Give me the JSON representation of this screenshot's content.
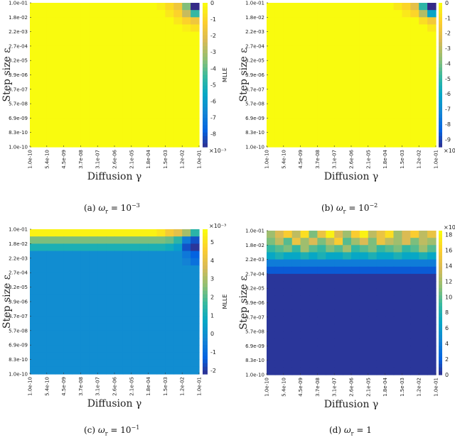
{
  "chart_data": [
    {
      "type": "heatmap",
      "caption": {
        "label": "(a)",
        "sym": "ω",
        "sub": "r",
        "eq": "= 10",
        "sup": "−3"
      },
      "xlabel": "Diffusion γ",
      "ylabel": "Step size ε",
      "x_ticks": [
        "1.0e-10",
        "5.4e-10",
        "4.5e-09",
        "3.7e-08",
        "3.1e-07",
        "2.6e-06",
        "2.1e-05",
        "1.8e-04",
        "1.5e-03",
        "1.2e-02",
        "1.0e-01"
      ],
      "y_ticks": [
        "1.0e-01",
        "1.8e-02",
        "2.2e-03",
        "2.7e-04",
        "3.2e-05",
        "3.9e-06",
        "4.7e-07",
        "5.7e-08",
        "6.9e-09",
        "8.3e-10",
        "1.0e-10"
      ],
      "colorbar": {
        "label": "MLLE",
        "scale": "×10⁻³",
        "scale_pos": "bottom",
        "range": [
          -8.8,
          0
        ],
        "ticks": [
          "0",
          "-1",
          "-2",
          "-3",
          "-4",
          "-5",
          "-6",
          "-7",
          "-8"
        ]
      },
      "top_rows": [
        [
          0,
          0,
          0,
          0,
          0,
          0,
          0,
          0,
          0,
          0,
          0,
          0,
          0,
          0,
          0,
          -0.3,
          -0.8,
          -1.5,
          -3.5,
          -8.8
        ],
        [
          0,
          0,
          0,
          0,
          0,
          0,
          0,
          0,
          0,
          0,
          0,
          0,
          0,
          0,
          0,
          0,
          -0.5,
          -1,
          -2.5,
          -4.5
        ],
        [
          0,
          0,
          0,
          0,
          0,
          0,
          0,
          0,
          0,
          0,
          0,
          0,
          0,
          0,
          0,
          0,
          0,
          -0.5,
          -1,
          -1.5
        ],
        [
          0,
          0,
          0,
          0,
          0,
          0,
          0,
          0,
          0,
          0,
          0,
          0,
          0,
          0,
          0,
          0,
          0,
          0,
          -0.3,
          -0.6
        ]
      ],
      "background": 0
    },
    {
      "type": "heatmap",
      "caption": {
        "label": "(b)",
        "sym": "ω",
        "sub": "r",
        "eq": "= 10",
        "sup": "−2"
      },
      "xlabel": "Diffusion γ",
      "ylabel": "Step size ε",
      "x_ticks": [
        "1.0e-10",
        "5.4e-10",
        "4.5e-09",
        "3.7e-08",
        "3.1e-07",
        "2.6e-06",
        "2.1e-05",
        "1.8e-04",
        "1.5e-03",
        "1.2e-02",
        "1.0e-01"
      ],
      "y_ticks": [
        "1.0e-01",
        "1.8e-02",
        "2.2e-03",
        "2.7e-04",
        "3.2e-05",
        "3.9e-06",
        "4.7e-07",
        "5.7e-08",
        "6.9e-09",
        "8.3e-10",
        "1.0e-10"
      ],
      "colorbar": {
        "label": "MLLE",
        "scale": "×10⁻³",
        "scale_pos": "bottom",
        "range": [
          -9.5,
          0
        ],
        "ticks": [
          "0",
          "-1",
          "-2",
          "-3",
          "-4",
          "-5",
          "-6",
          "-7",
          "-8",
          "-9"
        ]
      },
      "top_rows": [
        [
          0,
          0,
          0,
          0,
          0,
          0,
          0,
          0,
          0,
          0,
          0,
          0,
          0,
          0,
          0,
          -0.5,
          -1,
          -2,
          -5,
          -9.5
        ],
        [
          0,
          0,
          0,
          0,
          0,
          0,
          0,
          0,
          0,
          0,
          0,
          0,
          0,
          0,
          0,
          0,
          -0.5,
          -1,
          -3,
          -6
        ],
        [
          0,
          0,
          0,
          0,
          0,
          0,
          0,
          0,
          0,
          0,
          0,
          0,
          0,
          0,
          0,
          0,
          0,
          0,
          -0.8,
          -1.5
        ],
        [
          0,
          0,
          0,
          0,
          0,
          0,
          0,
          0,
          0,
          0,
          0,
          0,
          0,
          0,
          0,
          0,
          0,
          0,
          0,
          -0.5
        ]
      ],
      "background": 0
    },
    {
      "type": "heatmap",
      "caption": {
        "label": "(c)",
        "sym": "ω",
        "sub": "r",
        "eq": "= 10",
        "sup": "−1"
      },
      "xlabel": "Diffusion γ",
      "ylabel": "Step size ε",
      "x_ticks": [
        "1.0e-10",
        "5.4e-10",
        "4.5e-09",
        "3.7e-08",
        "3.1e-07",
        "2.6e-06",
        "2.1e-05",
        "1.8e-04",
        "1.5e-03",
        "1.2e-02",
        "1.0e-01"
      ],
      "y_ticks": [
        "1.0e-01",
        "1.8e-02",
        "2.2e-03",
        "2.7e-04",
        "3.2e-05",
        "3.9e-06",
        "4.7e-07",
        "5.7e-08",
        "6.9e-09",
        "8.3e-10",
        "1.0e-10"
      ],
      "colorbar": {
        "label": "MLLE",
        "scale": "×10⁻³",
        "scale_pos": "top",
        "range": [
          -2.2,
          5.7
        ],
        "ticks": [
          "5",
          "4",
          "3",
          "2",
          "1",
          "0",
          "-1",
          "-2"
        ]
      },
      "top_rows": [
        [
          5.5,
          5.5,
          5.5,
          5.5,
          5.5,
          5.5,
          5.5,
          5.5,
          5.5,
          5.5,
          5.5,
          5.5,
          5.5,
          5.5,
          5.5,
          5.2,
          4.5,
          4,
          3,
          1.5
        ],
        [
          2.5,
          2.5,
          2.5,
          2.5,
          2.5,
          2.5,
          2.5,
          2.5,
          2.5,
          2.5,
          2.5,
          2.5,
          2.5,
          2.5,
          2.5,
          2.5,
          2.3,
          1.5,
          -0.5,
          -1.5
        ],
        [
          1.2,
          1.2,
          1.2,
          1.2,
          1.2,
          1.2,
          1.2,
          1.2,
          1.2,
          1.2,
          1.2,
          1.2,
          1.2,
          1.2,
          1.2,
          1.2,
          1.0,
          0.5,
          -1.5,
          -2
        ],
        [
          0,
          0,
          0,
          0,
          0,
          0,
          0,
          0,
          0,
          0,
          0,
          0,
          0,
          0,
          0,
          0,
          0,
          0,
          -0.6,
          -1.2
        ],
        [
          0,
          0,
          0,
          0,
          0,
          0,
          0,
          0,
          0,
          0,
          0,
          0,
          0,
          0,
          0,
          0,
          0,
          0,
          -0.3,
          -0.8
        ]
      ],
      "background": 0
    },
    {
      "type": "heatmap",
      "caption": {
        "label": "(d)",
        "sym": "ω",
        "sub": "r",
        "eq": "= 1",
        "sup": ""
      },
      "xlabel": "Diffusion γ",
      "ylabel": "Step size ε",
      "x_ticks": [
        "1.0e-10",
        "5.4e-10",
        "4.5e-09",
        "3.7e-08",
        "3.1e-07",
        "2.6e-06",
        "2.1e-05",
        "1.8e-04",
        "1.5e-03",
        "1.2e-02",
        "1.0e-01"
      ],
      "y_ticks": [
        "1.0e-01",
        "1.8e-02",
        "2.2e-03",
        "2.7e-04",
        "3.2e-05",
        "3.9e-06",
        "4.7e-07",
        "5.7e-08",
        "6.9e-09",
        "8.3e-10",
        "1.0e-10"
      ],
      "colorbar": {
        "label": "MLLE",
        "scale": "×10⁻³",
        "scale_pos": "top",
        "range": [
          0,
          18.5
        ],
        "ticks": [
          "18",
          "16",
          "14",
          "12",
          "10",
          "8",
          "6",
          "4",
          "2",
          "0"
        ]
      },
      "top_rows": [
        [
          12,
          14,
          16,
          13,
          17,
          11,
          15,
          18,
          14,
          12,
          16,
          18,
          13,
          15,
          17,
          12,
          14,
          16,
          13,
          15
        ],
        [
          11,
          13,
          10,
          15,
          12,
          14,
          11,
          13,
          16,
          10,
          12,
          14,
          11,
          15,
          13,
          12,
          14,
          11,
          13,
          12
        ],
        [
          9,
          10,
          11,
          9,
          12,
          10,
          9,
          11,
          10,
          12,
          9,
          10,
          11,
          9,
          10,
          11,
          9,
          10,
          12,
          10
        ],
        [
          7,
          8,
          7,
          7,
          8,
          7,
          8,
          7,
          7,
          8,
          7,
          7,
          8,
          7,
          7,
          8,
          7,
          7,
          8,
          7
        ],
        [
          4,
          4,
          4,
          4,
          4,
          4,
          4,
          4,
          4,
          4,
          4,
          4,
          4,
          4,
          4,
          4,
          4,
          4,
          4,
          4
        ],
        [
          2,
          2,
          2,
          2,
          2,
          2,
          2,
          2,
          2,
          2,
          2,
          2,
          2,
          2,
          2,
          2,
          2,
          2,
          2,
          2
        ]
      ],
      "background": 0.5
    }
  ]
}
